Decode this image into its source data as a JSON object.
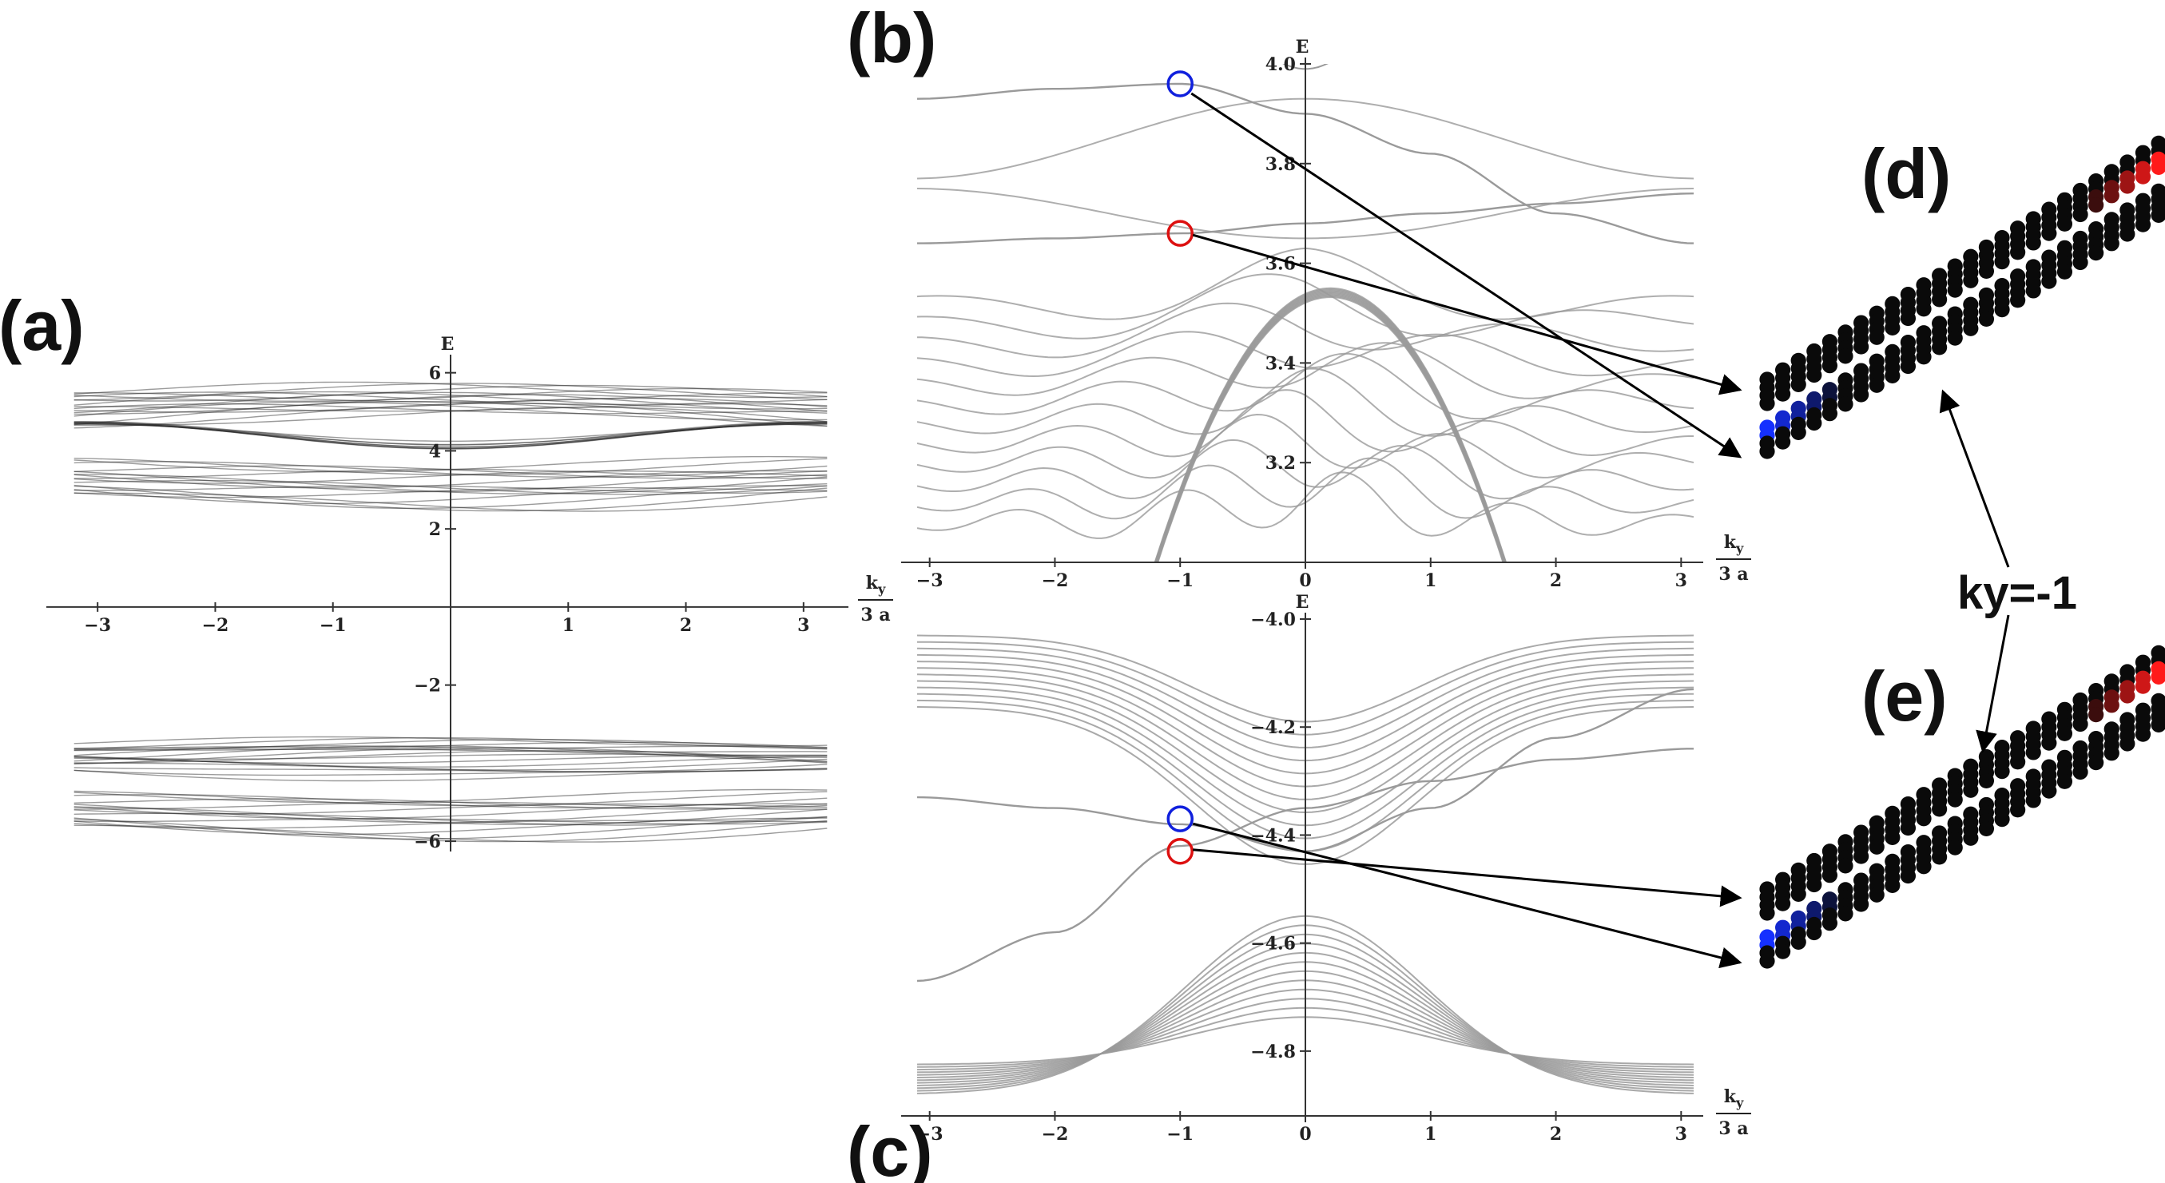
{
  "panel_labels": {
    "a": "(a)",
    "b": "(b)",
    "c": "(c)",
    "d": "(d)",
    "e": "(e)"
  },
  "annotation": {
    "ky": "ky=-1"
  },
  "colors": {
    "band": "#222222",
    "band_light": "#9a9a9a",
    "blue_marker": "#1020dd",
    "red_marker": "#dd1010",
    "site_black": "#0a0a0a",
    "site_blue": "#1530ff",
    "site_red": "#ff1a1a"
  },
  "chart_data": [
    {
      "id": "a",
      "type": "line",
      "title": "",
      "xlabel": "k_y / 3 a",
      "ylabel": "E",
      "xlabel_num": "k",
      "xlabel_sub": "y",
      "xlabel_den": "3 a",
      "xlim": [
        -3.3,
        3.3
      ],
      "ylim": [
        -6.1,
        6.3
      ],
      "xticks": [
        -3,
        -2,
        -1,
        1,
        2,
        3
      ],
      "xtick_labels": [
        "−3",
        "−2",
        "−1",
        "1",
        "2",
        "3"
      ],
      "yticks": [
        -6,
        -2,
        2,
        4,
        6
      ],
      "ytick_labels": [
        "−6",
        "−2",
        "2",
        "4",
        "6"
      ],
      "bands": [
        {
          "y0": 5.15,
          "amp": 0.3,
          "mode": "plus",
          "count": 16,
          "shift": 0.18
        },
        {
          "y0": 4.75,
          "amp": -0.6,
          "mode": "cos",
          "count": 8,
          "shift": 0.0
        },
        {
          "y0": 3.3,
          "amp": -0.3,
          "mode": "plus",
          "count": 16,
          "shift": -0.18
        },
        {
          "y0": -3.7,
          "amp": 0.25,
          "mode": "plus",
          "count": 10,
          "shift": 0.1
        },
        {
          "y0": -3.95,
          "amp": -0.25,
          "mode": "plus",
          "count": 8,
          "shift": 0.08
        },
        {
          "y0": -5.2,
          "amp": -0.3,
          "mode": "plus",
          "count": 16,
          "shift": -0.15
        }
      ]
    },
    {
      "id": "b",
      "type": "line",
      "title": "",
      "xlabel": "k_y / 3 a",
      "ylabel": "E",
      "xlabel_num": "k",
      "xlabel_sub": "y",
      "xlabel_den": "3 a",
      "xlim": [
        -3.1,
        3.1
      ],
      "ylim": [
        3.0,
        4.0
      ],
      "xticks": [
        -3,
        -2,
        -1,
        0,
        1,
        2,
        3
      ],
      "xtick_labels": [
        "−3",
        "−2",
        "−1",
        "0",
        "1",
        "2",
        "3"
      ],
      "yticks": [
        3.2,
        3.4,
        3.6,
        3.8,
        4.0
      ],
      "ytick_labels": [
        "3.2",
        "3.4",
        "3.6",
        "3.8",
        "4.0"
      ],
      "edge_states": [
        {
          "name": "",
          "points": [
            [
              -3.1,
              3.93
            ],
            [
              -2.0,
              3.95
            ],
            [
              -1.0,
              3.96
            ],
            [
              0.0,
              3.9
            ],
            [
              1.0,
              3.82
            ],
            [
              2.0,
              3.7
            ],
            [
              3.1,
              3.64
            ]
          ]
        },
        {
          "name": "",
          "points": [
            [
              -3.1,
              3.64
            ],
            [
              -2.0,
              3.65
            ],
            [
              -1.0,
              3.66
            ],
            [
              0.0,
              3.68
            ],
            [
              1.0,
              3.7
            ],
            [
              2.0,
              3.72
            ],
            [
              3.1,
              3.74
            ]
          ]
        }
      ],
      "markers": [
        {
          "x": -1.0,
          "y": 3.96,
          "color": "blue"
        },
        {
          "x": -1.0,
          "y": 3.66,
          "color": "red"
        }
      ]
    },
    {
      "id": "c",
      "type": "line",
      "title": "",
      "xlabel": "k_y / 3 a",
      "ylabel": "E",
      "xlabel_num": "k",
      "xlabel_sub": "y",
      "xlabel_den": "3 a",
      "xlim": [
        -3.1,
        3.1
      ],
      "ylim": [
        -4.92,
        -4.0
      ],
      "xticks": [
        -3,
        -2,
        -1,
        0,
        1,
        2,
        3
      ],
      "xtick_labels": [
        "−3",
        "−2",
        "−1",
        "0",
        "1",
        "2",
        "3"
      ],
      "yticks": [
        -4.0,
        -4.2,
        -4.4,
        -4.6,
        -4.8
      ],
      "ytick_labels": [
        "−4.0",
        "−4.2",
        "−4.4",
        "−4.6",
        "−4.8"
      ],
      "edge_states": [
        {
          "name": "",
          "points": [
            [
              -3.1,
              -4.33
            ],
            [
              -2.0,
              -4.35
            ],
            [
              -1.0,
              -4.38
            ],
            [
              0.0,
              -4.43
            ],
            [
              1.0,
              -4.35
            ],
            [
              2.0,
              -4.22
            ],
            [
              3.1,
              -4.13
            ]
          ]
        },
        {
          "name": "",
          "points": [
            [
              -3.1,
              -4.67
            ],
            [
              -2.0,
              -4.58
            ],
            [
              -1.0,
              -4.42
            ],
            [
              0.0,
              -4.35
            ],
            [
              1.0,
              -4.3
            ],
            [
              2.0,
              -4.26
            ],
            [
              3.1,
              -4.24
            ]
          ]
        }
      ],
      "markers": [
        {
          "x": -1.0,
          "y": -4.37,
          "color": "blue"
        },
        {
          "x": -1.0,
          "y": -4.43,
          "color": "red"
        }
      ]
    }
  ],
  "lattices": [
    {
      "id": "d",
      "chains": 4,
      "length": 26,
      "gradients": [
        {
          "chain": 1,
          "color": "red",
          "from_end": true
        },
        {
          "chain": 2,
          "color": "blue",
          "from_end": false
        }
      ]
    },
    {
      "id": "e",
      "chains": 4,
      "length": 26,
      "gradients": [
        {
          "chain": 1,
          "color": "red",
          "from_end": true
        },
        {
          "chain": 2,
          "color": "blue",
          "from_end": false
        }
      ]
    }
  ]
}
